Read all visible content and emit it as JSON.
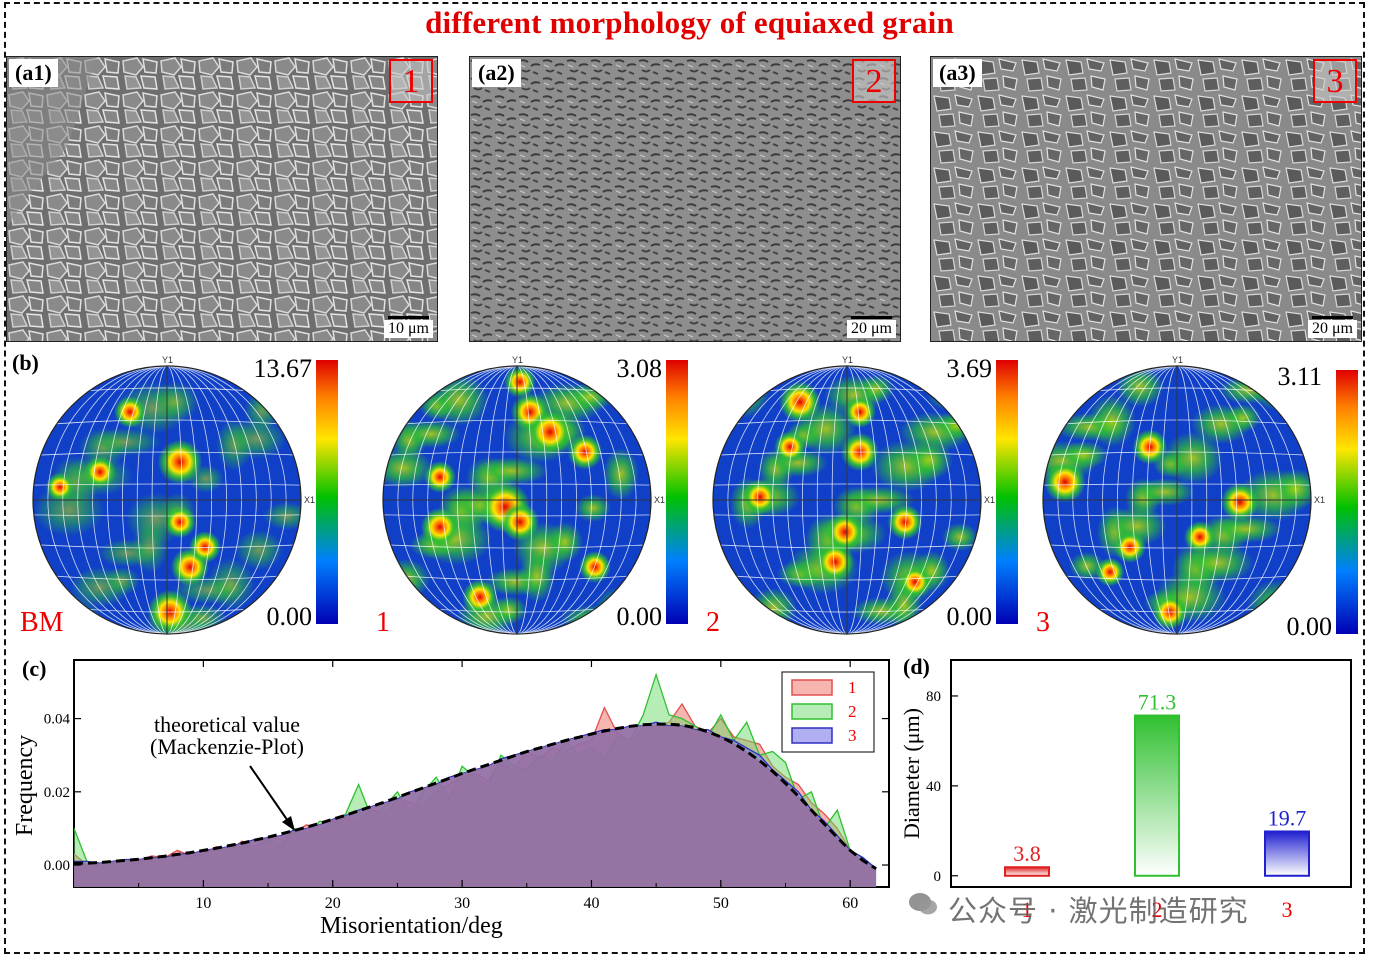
{
  "title": "different morphology of equiaxed grain",
  "sem_panels": [
    {
      "label": "(a1)",
      "number": "1",
      "scale": "10 μm"
    },
    {
      "label": "(a2)",
      "number": "2",
      "scale": "20 μm"
    },
    {
      "label": "(a3)",
      "number": "3",
      "scale": "20 μm"
    }
  ],
  "pole_figures": {
    "section_label": "(b)",
    "axis_y": "Y1",
    "axis_x": "X1",
    "items": [
      {
        "name": "BM",
        "max": "13.67",
        "min": "0.00"
      },
      {
        "name": "1",
        "max": "3.08",
        "min": "0.00"
      },
      {
        "name": "2",
        "max": "3.69",
        "min": "0.00"
      },
      {
        "name": "3",
        "max": "3.11",
        "min": "0.00"
      }
    ],
    "colors": {
      "high": "#e00000",
      "mid": "#00c000",
      "low": "#0000b4"
    }
  },
  "chart_data": [
    {
      "type": "area",
      "panel_label": "(c)",
      "xlabel": "Misorientation/deg",
      "ylabel": "Frequency",
      "xlim": [
        0,
        63
      ],
      "ylim": [
        -0.006,
        0.056
      ],
      "xticks": [
        10,
        20,
        30,
        40,
        50,
        60
      ],
      "yticks": [
        0.0,
        0.02,
        0.04
      ],
      "ytick_labels": [
        "0.00",
        "0.02",
        "0.04"
      ],
      "annotation": [
        "theoretical value",
        "(Mackenzie-Plot)"
      ],
      "x": [
        0,
        1,
        2,
        3,
        4,
        5,
        6,
        7,
        8,
        9,
        10,
        11,
        12,
        13,
        14,
        15,
        16,
        17,
        18,
        19,
        20,
        21,
        22,
        23,
        24,
        25,
        26,
        27,
        28,
        29,
        30,
        31,
        32,
        33,
        34,
        35,
        36,
        37,
        38,
        39,
        40,
        41,
        42,
        43,
        44,
        45,
        46,
        47,
        48,
        49,
        50,
        51,
        52,
        53,
        54,
        55,
        56,
        57,
        58,
        59,
        60,
        61,
        62
      ],
      "theoretical": [
        0.0005,
        0.0005,
        0.0007,
        0.001,
        0.0013,
        0.0016,
        0.002,
        0.0024,
        0.0029,
        0.0034,
        0.004,
        0.0046,
        0.0053,
        0.006,
        0.0068,
        0.0076,
        0.0085,
        0.0094,
        0.0104,
        0.0114,
        0.0125,
        0.0136,
        0.0148,
        0.016,
        0.0172,
        0.0185,
        0.0198,
        0.0211,
        0.0224,
        0.0237,
        0.025,
        0.0262,
        0.0274,
        0.0286,
        0.0298,
        0.031,
        0.032,
        0.033,
        0.034,
        0.0349,
        0.0358,
        0.0366,
        0.0373,
        0.0379,
        0.0383,
        0.0385,
        0.0385,
        0.0382,
        0.0375,
        0.0364,
        0.035,
        0.0332,
        0.031,
        0.0285,
        0.0256,
        0.0223,
        0.0188,
        0.015,
        0.0112,
        0.0075,
        0.004,
        0.0012,
        -0.001
      ],
      "series": [
        {
          "name": "1",
          "color": "#e05050",
          "values": [
            0.003,
            0.0,
            0.0005,
            0.001,
            0.0015,
            0.001,
            0.0025,
            0.002,
            0.004,
            0.0025,
            0.003,
            0.005,
            0.004,
            0.0065,
            0.005,
            0.0075,
            0.007,
            0.009,
            0.011,
            0.009,
            0.012,
            0.013,
            0.012,
            0.015,
            0.014,
            0.018,
            0.017,
            0.016,
            0.02,
            0.022,
            0.024,
            0.025,
            0.023,
            0.028,
            0.026,
            0.031,
            0.029,
            0.032,
            0.031,
            0.033,
            0.034,
            0.043,
            0.036,
            0.034,
            0.037,
            0.038,
            0.039,
            0.044,
            0.038,
            0.036,
            0.04,
            0.035,
            0.034,
            0.033,
            0.027,
            0.024,
            0.022,
            0.017,
            0.014,
            0.01,
            0.004,
            0.001,
            -0.001
          ]
        },
        {
          "name": "2",
          "color": "#30c030",
          "values": [
            0.01,
            0.001,
            0.0005,
            0.0005,
            0.001,
            0.0005,
            0.002,
            0.0015,
            0.003,
            0.002,
            0.003,
            0.004,
            0.005,
            0.006,
            0.004,
            0.007,
            0.005,
            0.01,
            0.008,
            0.012,
            0.011,
            0.014,
            0.022,
            0.013,
            0.016,
            0.02,
            0.014,
            0.02,
            0.024,
            0.018,
            0.027,
            0.024,
            0.021,
            0.03,
            0.027,
            0.026,
            0.03,
            0.028,
            0.034,
            0.03,
            0.032,
            0.029,
            0.035,
            0.034,
            0.041,
            0.052,
            0.041,
            0.04,
            0.038,
            0.035,
            0.041,
            0.034,
            0.039,
            0.03,
            0.031,
            0.028,
            0.018,
            0.02,
            0.01,
            0.015,
            0.004,
            0.002,
            -0.001
          ]
        },
        {
          "name": "3",
          "color": "#3030c0",
          "values": [
            0.001,
            0.001,
            0.0005,
            0.001,
            0.0015,
            0.0015,
            0.002,
            0.002,
            0.003,
            0.003,
            0.004,
            0.0045,
            0.005,
            0.006,
            0.007,
            0.0075,
            0.008,
            0.0095,
            0.01,
            0.011,
            0.0125,
            0.0135,
            0.015,
            0.016,
            0.017,
            0.018,
            0.02,
            0.021,
            0.022,
            0.024,
            0.025,
            0.026,
            0.027,
            0.029,
            0.03,
            0.031,
            0.032,
            0.033,
            0.034,
            0.035,
            0.036,
            0.037,
            0.037,
            0.038,
            0.038,
            0.039,
            0.038,
            0.038,
            0.037,
            0.037,
            0.035,
            0.034,
            0.032,
            0.03,
            0.026,
            0.023,
            0.02,
            0.015,
            0.012,
            0.008,
            0.004,
            0.002,
            -0.001
          ]
        }
      ],
      "legend_position": "top-right"
    },
    {
      "type": "bar",
      "panel_label": "(d)",
      "ylabel": "Diameter (μm)",
      "ylim": [
        -5,
        96
      ],
      "yticks": [
        0,
        40,
        80
      ],
      "categories": [
        "1",
        "2",
        "3"
      ],
      "values": [
        3.8,
        71.3,
        19.7
      ],
      "value_labels": [
        "3.8",
        "71.3",
        "19.7"
      ],
      "colors": [
        "#e02020",
        "#30c030",
        "#2020d0"
      ]
    }
  ],
  "watermark": "公众号 · 激光制造研究"
}
